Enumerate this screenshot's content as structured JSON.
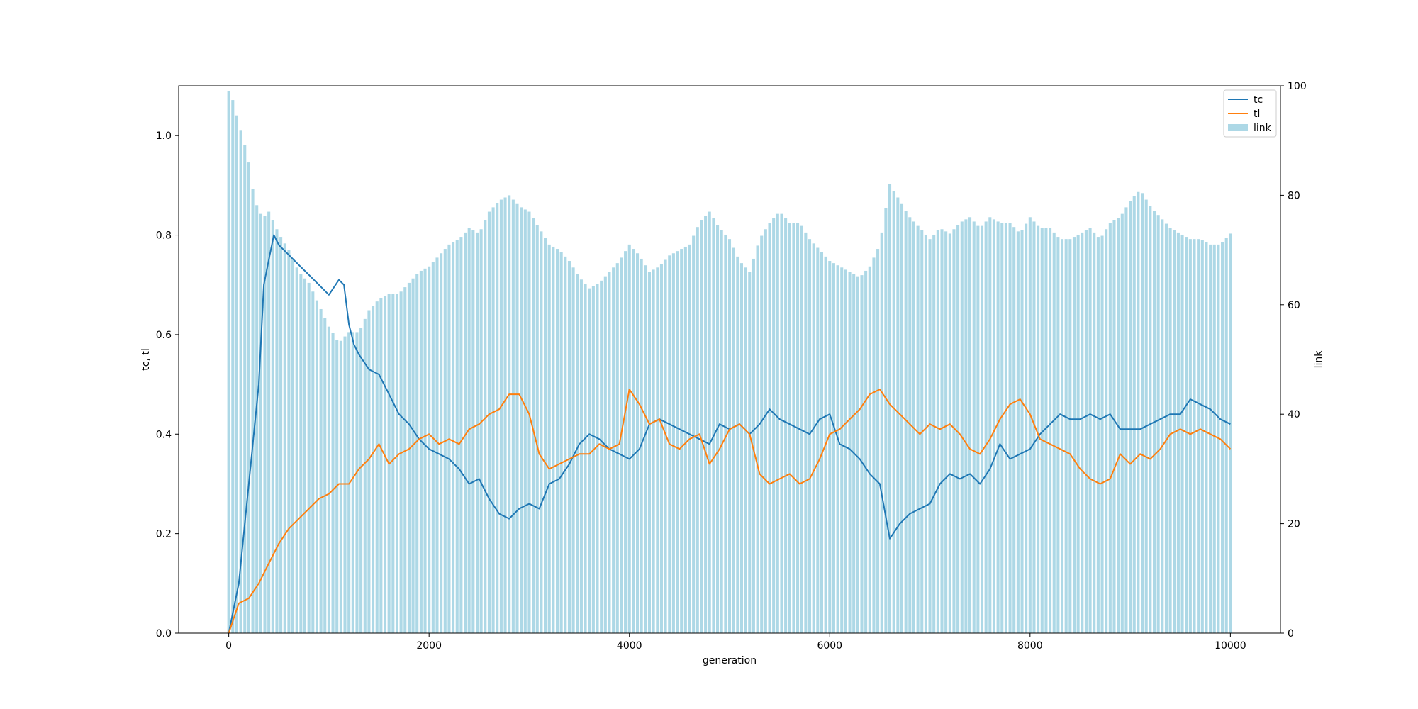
{
  "chart_data": {
    "type": "bar+line",
    "title": "",
    "xlabel": "generation",
    "ylabel_left": "tc, tl",
    "ylabel_right": "link",
    "xlim": [
      -500,
      10500
    ],
    "ylim_left": [
      0,
      1.1
    ],
    "ylim_right": [
      0,
      100
    ],
    "x_ticks": [
      0,
      2000,
      4000,
      6000,
      8000,
      10000
    ],
    "x_tick_labels": [
      "0",
      "2000",
      "4000",
      "6000",
      "8000",
      "10000"
    ],
    "y_left_ticks": [
      0.0,
      0.2,
      0.4,
      0.6,
      0.8,
      1.0
    ],
    "y_left_tick_labels": [
      "0.0",
      "0.2",
      "0.4",
      "0.6",
      "0.8",
      "1.0"
    ],
    "y_right_ticks": [
      0,
      20,
      40,
      60,
      80,
      100
    ],
    "y_right_tick_labels": [
      "0",
      "20",
      "40",
      "60",
      "80",
      "100"
    ],
    "grid": false,
    "legend_position": "top-right",
    "legend": [
      {
        "label": "tc",
        "kind": "line",
        "color": "#1f77b4"
      },
      {
        "label": "tl",
        "kind": "line",
        "color": "#ff7f0e"
      },
      {
        "label": "link",
        "kind": "bar",
        "color": "#add8e6"
      }
    ],
    "series": [
      {
        "name": "tc",
        "axis": "left",
        "color": "#1f77b4",
        "x": [
          0,
          100,
          200,
          300,
          350,
          400,
          450,
          500,
          600,
          700,
          800,
          900,
          1000,
          1100,
          1150,
          1200,
          1250,
          1300,
          1400,
          1500,
          1600,
          1700,
          1800,
          1900,
          2000,
          2100,
          2200,
          2300,
          2400,
          2500,
          2600,
          2700,
          2800,
          2900,
          3000,
          3100,
          3200,
          3300,
          3400,
          3500,
          3600,
          3700,
          3800,
          3900,
          4000,
          4100,
          4200,
          4300,
          4400,
          4500,
          4600,
          4700,
          4800,
          4900,
          5000,
          5100,
          5200,
          5300,
          5400,
          5500,
          5600,
          5700,
          5800,
          5900,
          6000,
          6100,
          6200,
          6300,
          6400,
          6500,
          6600,
          6700,
          6800,
          6900,
          7000,
          7100,
          7200,
          7300,
          7400,
          7500,
          7600,
          7700,
          7800,
          7900,
          8000,
          8100,
          8200,
          8300,
          8400,
          8500,
          8600,
          8700,
          8800,
          8900,
          9000,
          9100,
          9200,
          9300,
          9400,
          9500,
          9600,
          9700,
          9800,
          9900,
          10000
        ],
        "values": [
          0.0,
          0.1,
          0.3,
          0.5,
          0.7,
          0.75,
          0.8,
          0.78,
          0.76,
          0.74,
          0.72,
          0.7,
          0.68,
          0.71,
          0.7,
          0.62,
          0.58,
          0.56,
          0.53,
          0.52,
          0.48,
          0.44,
          0.42,
          0.39,
          0.37,
          0.36,
          0.35,
          0.33,
          0.3,
          0.31,
          0.27,
          0.24,
          0.23,
          0.25,
          0.26,
          0.25,
          0.3,
          0.31,
          0.34,
          0.38,
          0.4,
          0.39,
          0.37,
          0.36,
          0.35,
          0.37,
          0.42,
          0.43,
          0.42,
          0.41,
          0.4,
          0.39,
          0.38,
          0.42,
          0.41,
          0.42,
          0.4,
          0.42,
          0.45,
          0.43,
          0.42,
          0.41,
          0.4,
          0.43,
          0.44,
          0.38,
          0.37,
          0.35,
          0.32,
          0.3,
          0.19,
          0.22,
          0.24,
          0.25,
          0.26,
          0.3,
          0.32,
          0.31,
          0.32,
          0.3,
          0.33,
          0.38,
          0.35,
          0.36,
          0.37,
          0.4,
          0.42,
          0.44,
          0.43,
          0.43,
          0.44,
          0.43,
          0.44,
          0.41,
          0.41,
          0.41,
          0.42,
          0.43,
          0.44,
          0.44,
          0.47,
          0.46,
          0.45,
          0.43,
          0.42
        ]
      },
      {
        "name": "tl",
        "axis": "left",
        "color": "#ff7f0e",
        "x": [
          0,
          100,
          200,
          300,
          400,
          500,
          600,
          700,
          800,
          900,
          1000,
          1100,
          1200,
          1300,
          1400,
          1500,
          1600,
          1700,
          1800,
          1900,
          2000,
          2100,
          2200,
          2300,
          2400,
          2500,
          2600,
          2700,
          2800,
          2900,
          3000,
          3100,
          3200,
          3300,
          3400,
          3500,
          3600,
          3700,
          3800,
          3900,
          4000,
          4100,
          4200,
          4300,
          4400,
          4500,
          4600,
          4700,
          4800,
          4900,
          5000,
          5100,
          5200,
          5300,
          5400,
          5500,
          5600,
          5700,
          5800,
          5900,
          6000,
          6100,
          6200,
          6300,
          6400,
          6500,
          6600,
          6700,
          6800,
          6900,
          7000,
          7100,
          7200,
          7300,
          7400,
          7500,
          7600,
          7700,
          7800,
          7900,
          8000,
          8100,
          8200,
          8300,
          8400,
          8500,
          8600,
          8700,
          8800,
          8900,
          9000,
          9100,
          9200,
          9300,
          9400,
          9500,
          9600,
          9700,
          9800,
          9900,
          10000
        ],
        "values": [
          0.0,
          0.06,
          0.07,
          0.1,
          0.14,
          0.18,
          0.21,
          0.23,
          0.25,
          0.27,
          0.28,
          0.3,
          0.3,
          0.33,
          0.35,
          0.38,
          0.34,
          0.36,
          0.37,
          0.39,
          0.4,
          0.38,
          0.39,
          0.38,
          0.41,
          0.42,
          0.44,
          0.45,
          0.48,
          0.48,
          0.44,
          0.36,
          0.33,
          0.34,
          0.35,
          0.36,
          0.36,
          0.38,
          0.37,
          0.38,
          0.49,
          0.46,
          0.42,
          0.43,
          0.38,
          0.37,
          0.39,
          0.4,
          0.34,
          0.37,
          0.41,
          0.42,
          0.4,
          0.32,
          0.3,
          0.31,
          0.32,
          0.3,
          0.31,
          0.35,
          0.4,
          0.41,
          0.43,
          0.45,
          0.48,
          0.49,
          0.46,
          0.44,
          0.42,
          0.4,
          0.42,
          0.41,
          0.42,
          0.4,
          0.37,
          0.36,
          0.39,
          0.43,
          0.46,
          0.47,
          0.44,
          0.39,
          0.38,
          0.37,
          0.36,
          0.33,
          0.31,
          0.3,
          0.31,
          0.36,
          0.34,
          0.36,
          0.35,
          0.37,
          0.4,
          0.41,
          0.4,
          0.41,
          0.4,
          0.39,
          0.37
        ]
      },
      {
        "name": "link",
        "axis": "right",
        "color": "#add8e6",
        "x": [
          0,
          50,
          100,
          150,
          200,
          250,
          300,
          350,
          400,
          450,
          500,
          600,
          700,
          800,
          900,
          1000,
          1100,
          1200,
          1300,
          1400,
          1500,
          1600,
          1700,
          1800,
          1900,
          2000,
          2100,
          2200,
          2300,
          2400,
          2500,
          2600,
          2700,
          2800,
          2900,
          3000,
          3100,
          3200,
          3300,
          3400,
          3500,
          3600,
          3700,
          3800,
          3900,
          4000,
          4100,
          4200,
          4300,
          4400,
          4500,
          4600,
          4700,
          4800,
          4900,
          5000,
          5100,
          5200,
          5300,
          5400,
          5500,
          5600,
          5700,
          5800,
          5900,
          6000,
          6100,
          6200,
          6300,
          6400,
          6500,
          6600,
          6700,
          6800,
          6900,
          7000,
          7100,
          7200,
          7300,
          7400,
          7500,
          7600,
          7700,
          7800,
          7900,
          8000,
          8100,
          8200,
          8300,
          8400,
          8500,
          8600,
          8700,
          8800,
          8900,
          9000,
          9100,
          9200,
          9300,
          9400,
          9500,
          9600,
          9700,
          9800,
          9900,
          10000
        ],
        "values": [
          99,
          97,
          93,
          90,
          86,
          80,
          77,
          76,
          77,
          75,
          73,
          70,
          66,
          64,
          60,
          56,
          53,
          55,
          55,
          59,
          61,
          62,
          62,
          64,
          66,
          67,
          69,
          71,
          72,
          74,
          73,
          77,
          79,
          80,
          78,
          77,
          74,
          71,
          70,
          68,
          65,
          63,
          64,
          66,
          68,
          71,
          69,
          66,
          67,
          69,
          70,
          71,
          75,
          77,
          74,
          72,
          68,
          66,
          72,
          75,
          77,
          75,
          75,
          72,
          70,
          68,
          67,
          66,
          65,
          67,
          71,
          82,
          79,
          76,
          74,
          72,
          74,
          73,
          75,
          76,
          74,
          76,
          75,
          75,
          73,
          76,
          74,
          74,
          72,
          72,
          73,
          74,
          72,
          75,
          76,
          79,
          81,
          78,
          76,
          74,
          73,
          72,
          72,
          71,
          71,
          73
        ]
      }
    ]
  }
}
